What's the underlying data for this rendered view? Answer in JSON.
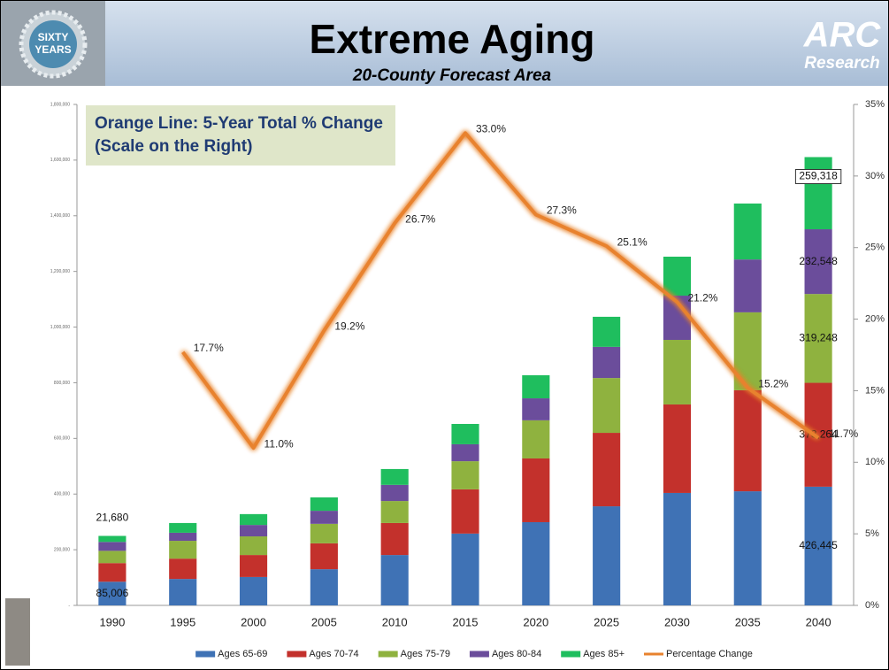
{
  "logos": {
    "left": [
      "SIXTY",
      "YEARS"
    ],
    "right": [
      "ARC",
      "Research"
    ]
  },
  "chart_data": {
    "type": "bar",
    "stacked": true,
    "title": "Extreme Aging",
    "subtitle": "20-County Forecast Area",
    "annotation": "Orange Line: 5-Year Total % Change (Scale on the Right)",
    "categories": [
      "1990",
      "1995",
      "2000",
      "2005",
      "2010",
      "2015",
      "2020",
      "2025",
      "2030",
      "2035",
      "2040"
    ],
    "series": [
      {
        "name": "Ages 65-69",
        "color": "#3f72b5",
        "values": [
          85006,
          95000,
          102000,
          130000,
          181000,
          258000,
          299000,
          356000,
          404000,
          410000,
          426445
        ],
        "value_labels": [
          "85,006",
          null,
          null,
          null,
          null,
          null,
          null,
          null,
          null,
          null,
          "426,445"
        ]
      },
      {
        "name": "Ages 70-74",
        "color": "#c3312c",
        "values": [
          67000,
          73000,
          79000,
          93000,
          115000,
          159000,
          229000,
          264000,
          318000,
          363000,
          373264
        ],
        "value_labels": [
          null,
          null,
          null,
          null,
          null,
          null,
          null,
          null,
          null,
          null,
          "373,264"
        ]
      },
      {
        "name": "Ages 75-79",
        "color": "#8fb23f",
        "values": [
          44000,
          64000,
          67000,
          70000,
          79000,
          101000,
          137000,
          197000,
          232000,
          280000,
          319248
        ],
        "value_labels": [
          null,
          null,
          null,
          null,
          null,
          null,
          null,
          null,
          null,
          null,
          "319,248"
        ]
      },
      {
        "name": "Ages 80-84",
        "color": "#6b4d9b",
        "values": [
          32000,
          29000,
          41000,
          47000,
          58000,
          61000,
          79000,
          112000,
          159000,
          190000,
          232548
        ],
        "value_labels": [
          null,
          null,
          null,
          null,
          null,
          null,
          null,
          null,
          null,
          null,
          "232,548"
        ]
      },
      {
        "name": "Ages 85+",
        "color": "#1fbe5e",
        "values": [
          21680,
          35000,
          39000,
          48000,
          57000,
          73000,
          83000,
          108000,
          140000,
          201000,
          259318
        ],
        "value_labels": [
          "21,680",
          null,
          null,
          null,
          null,
          null,
          null,
          null,
          null,
          null,
          "259,318"
        ]
      },
      {
        "name": "Percentage Change",
        "type": "line",
        "axis": "y2",
        "color": "#e8822e",
        "values": [
          null,
          17.7,
          11.0,
          19.2,
          26.7,
          33.0,
          27.3,
          25.1,
          21.2,
          15.2,
          11.7
        ],
        "value_labels": [
          null,
          "17.7%",
          "11.0%",
          "19.2%",
          "26.7%",
          "33.0%",
          "27.3%",
          "25.1%",
          "21.2%",
          "15.2%",
          "11.7%"
        ]
      }
    ],
    "ylim": [
      0,
      1800000
    ],
    "yticks": [
      {
        "value": 0,
        "label": "-"
      },
      {
        "value": 200000,
        "label": "200,000"
      },
      {
        "value": 400000,
        "label": "400,000"
      },
      {
        "value": 600000,
        "label": "600,000"
      },
      {
        "value": 800000,
        "label": "800,000"
      },
      {
        "value": 1000000,
        "label": "1,000,000"
      },
      {
        "value": 1200000,
        "label": "1,200,000"
      },
      {
        "value": 1400000,
        "label": "1,400,000"
      },
      {
        "value": 1600000,
        "label": "1,600,000"
      },
      {
        "value": 1800000,
        "label": "1,800,000"
      }
    ],
    "y2lim": [
      0,
      35
    ],
    "y2ticks": [
      {
        "value": 0,
        "label": "0%"
      },
      {
        "value": 5,
        "label": "5%"
      },
      {
        "value": 10,
        "label": "10%"
      },
      {
        "value": 15,
        "label": "15%"
      },
      {
        "value": 20,
        "label": "20%"
      },
      {
        "value": 25,
        "label": "25%"
      },
      {
        "value": 30,
        "label": "30%"
      },
      {
        "value": 35,
        "label": "35%"
      }
    ],
    "grid": false,
    "legend": "bottom"
  }
}
